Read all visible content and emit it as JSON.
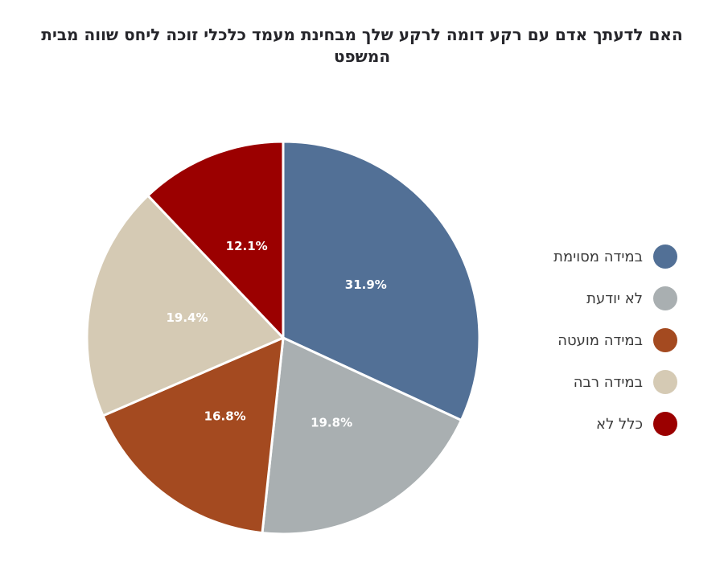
{
  "chart_data": {
    "type": "pie",
    "title": "האם לדעתך אדם עם רקע דומה לרקע שלך מבחינת מעמד כלכלי זוכה ליחס שווה מבית המשפט",
    "slices": [
      {
        "label": "במידה מסוימת",
        "value": 31.9,
        "color": "#527096"
      },
      {
        "label": "לא יודעת",
        "value": 19.8,
        "color": "#a9afb1"
      },
      {
        "label": "במידה מועטה",
        "value": 16.8,
        "color": "#a44a20"
      },
      {
        "label": "במידה רבה",
        "value": 19.4,
        "color": "#d5cab4"
      },
      {
        "label": "כלל לא",
        "value": 12.1,
        "color": "#9b0000"
      }
    ],
    "value_suffix": "%",
    "start_angle_deg": 0,
    "direction": "clockwise",
    "legend_position": "right",
    "label_position": "inside",
    "label_color": "#ffffff",
    "slice_border_color": "#ffffff",
    "slice_border_width": 3
  }
}
